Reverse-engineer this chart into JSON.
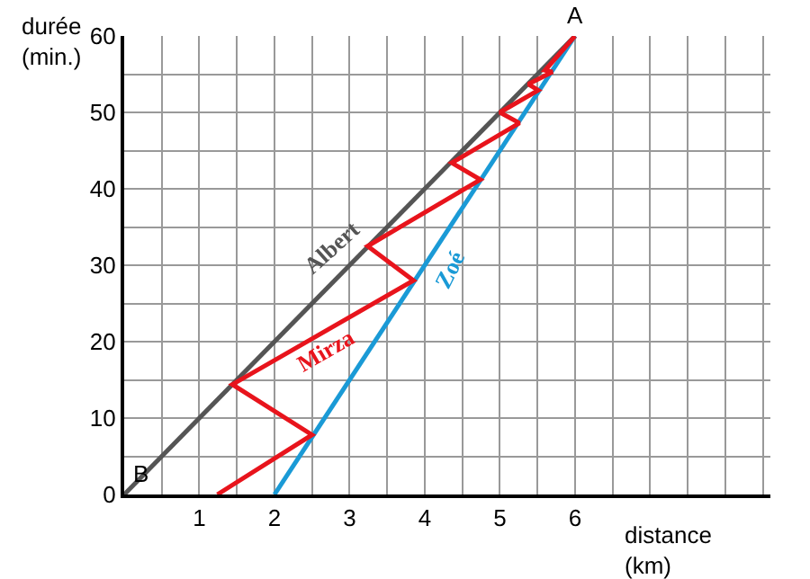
{
  "chart_data": {
    "type": "line",
    "xlabel": "distance\n(km)",
    "ylabel": "durée\n(min.)",
    "xlim": [
      0,
      8.6
    ],
    "ylim": [
      0,
      60
    ],
    "xticks": [
      {
        "value": 0,
        "label": null
      },
      {
        "value": 0.5,
        "label": null
      },
      1,
      {
        "value": 1.5,
        "label": null
      },
      2,
      {
        "value": 2.5,
        "label": null
      },
      3,
      {
        "value": 3.5,
        "label": null
      },
      4,
      {
        "value": 4.5,
        "label": null
      },
      5,
      {
        "value": 5.5,
        "label": null
      },
      6,
      {
        "value": 6.5,
        "label": null
      },
      {
        "value": 7,
        "label": null
      },
      {
        "value": 7.5,
        "label": null
      },
      {
        "value": 8,
        "label": null
      },
      {
        "value": 8.5,
        "label": null
      }
    ],
    "yticks": [
      0,
      {
        "value": 5,
        "label": null
      },
      10,
      {
        "value": 15,
        "label": null
      },
      20,
      {
        "value": 25,
        "label": null
      },
      30,
      {
        "value": 35,
        "label": null
      },
      40,
      {
        "value": 45,
        "label": null
      },
      50,
      {
        "value": 55,
        "label": null
      },
      60
    ],
    "grid": true,
    "legend": false,
    "marker": "none",
    "line_style": "solid",
    "series": [
      {
        "name": "Albert",
        "color": "#555555",
        "x": [
          0,
          6
        ],
        "values": [
          0,
          60
        ]
      },
      {
        "name": "Zoé",
        "color": "#1a9ad6",
        "x": [
          2,
          6
        ],
        "values": [
          0,
          60
        ]
      },
      {
        "name": "Mirza",
        "color": "#e8141c",
        "x": [
          1.24,
          2.5,
          1.44,
          3.85,
          3.24,
          4.74,
          4.36,
          5.26,
          5.0,
          5.51,
          5.38,
          5.7,
          5.6,
          6
        ],
        "values": [
          0,
          7.8,
          14.4,
          28,
          32.5,
          41.2,
          43.4,
          48.6,
          50,
          52.9,
          53.7,
          55.3,
          55.5,
          60
        ]
      }
    ],
    "annotations": [
      {
        "text": "A",
        "x": 6,
        "y": 60
      },
      {
        "text": "B",
        "x": 0,
        "y": 0
      }
    ]
  }
}
